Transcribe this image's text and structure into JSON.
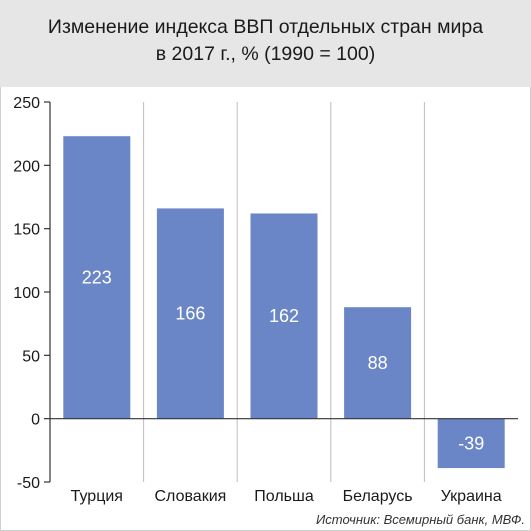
{
  "chart_data": {
    "type": "bar",
    "title": "Изменение индекса ВВП отдельных стран мира",
    "subtitle": "в 2017 г., % (1990 = 100)",
    "categories": [
      "Турция",
      "Словакия",
      "Польша",
      "Беларусь",
      "Украина"
    ],
    "values": [
      223,
      166,
      162,
      88,
      -39
    ],
    "data_labels": [
      "223",
      "166",
      "162",
      "88",
      "-39"
    ],
    "ylim": [
      -50,
      250
    ],
    "yticks": [
      250,
      200,
      150,
      100,
      50,
      0,
      -50
    ],
    "xlabel": "",
    "ylabel": "",
    "grid": "vertical separators between categories",
    "legend": "none",
    "source": "Источник: Всемирный банк, МВФ."
  },
  "colors": {
    "bar": "#6b86c6",
    "header_bg": "#e6e6e6",
    "axis": "#333333",
    "grid": "#bdbdbd"
  }
}
